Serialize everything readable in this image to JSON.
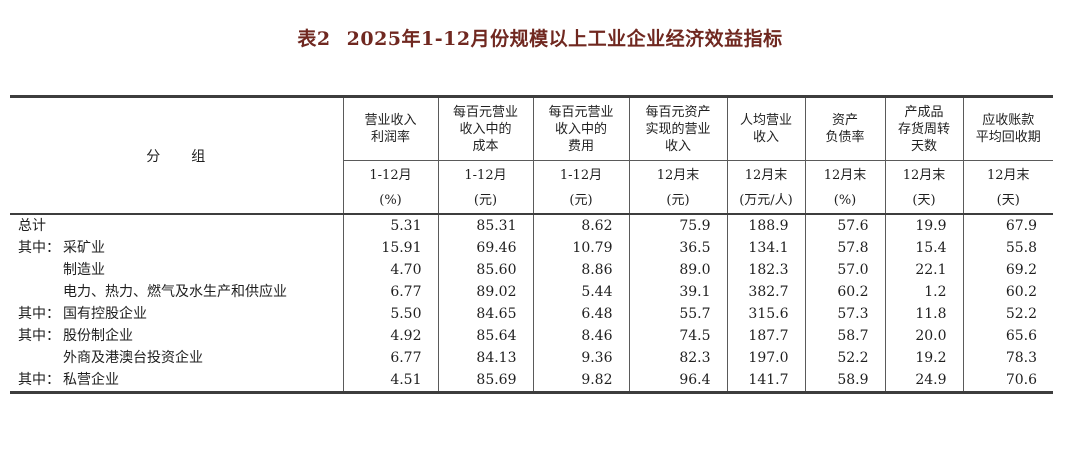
{
  "title": {
    "tag": "表2",
    "text": "2025年1-12月份规模以上工业企业经济效益指标"
  },
  "colors": {
    "title_text": "#702820",
    "heavy_border": "#3d3d3d",
    "light_border": "#5a5a5a",
    "body_text": "#1f1f1f",
    "background": "#ffffff"
  },
  "table": {
    "group_header": "分　　组",
    "columns": [
      {
        "name": "营业收入\n利润率",
        "period": "1-12月",
        "unit": "(%)"
      },
      {
        "name": "每百元营业\n收入中的\n成本",
        "period": "1-12月",
        "unit": "(元)"
      },
      {
        "name": "每百元营业\n收入中的\n费用",
        "period": "1-12月",
        "unit": "(元)"
      },
      {
        "name": "每百元资产\n实现的营业\n收入",
        "period": "12月末",
        "unit": "(元)"
      },
      {
        "name": "人均营业\n收入",
        "period": "12月末",
        "unit": "(万元/人)"
      },
      {
        "name": "资产\n负债率",
        "period": "12月末",
        "unit": "(%)"
      },
      {
        "name": "产成品\n存货周转\n天数",
        "period": "12月末",
        "unit": "(天)"
      },
      {
        "name": "应收账款\n平均回收期",
        "period": "12月末",
        "unit": "(天)"
      }
    ],
    "rows": [
      {
        "prefix": "",
        "name": "总计",
        "indent": false,
        "values": [
          "5.31",
          "85.31",
          "8.62",
          "75.9",
          "188.9",
          "57.6",
          "19.9",
          "67.9"
        ]
      },
      {
        "prefix": "其中：",
        "name": "采矿业",
        "indent": false,
        "values": [
          "15.91",
          "69.46",
          "10.79",
          "36.5",
          "134.1",
          "57.8",
          "15.4",
          "55.8"
        ]
      },
      {
        "prefix": "",
        "name": "制造业",
        "indent": true,
        "values": [
          "4.70",
          "85.60",
          "8.86",
          "89.0",
          "182.3",
          "57.0",
          "22.1",
          "69.2"
        ]
      },
      {
        "prefix": "",
        "name": "电力、热力、燃气及水生产和供应业",
        "indent": true,
        "values": [
          "6.77",
          "89.02",
          "5.44",
          "39.1",
          "382.7",
          "60.2",
          "1.2",
          "60.2"
        ]
      },
      {
        "prefix": "其中：",
        "name": "国有控股企业",
        "indent": false,
        "values": [
          "5.50",
          "84.65",
          "6.48",
          "55.7",
          "315.6",
          "57.3",
          "11.8",
          "52.2"
        ]
      },
      {
        "prefix": "其中：",
        "name": "股份制企业",
        "indent": false,
        "values": [
          "4.92",
          "85.64",
          "8.46",
          "74.5",
          "187.7",
          "58.7",
          "20.0",
          "65.6"
        ]
      },
      {
        "prefix": "",
        "name": "外商及港澳台投资企业",
        "indent": true,
        "values": [
          "6.77",
          "84.13",
          "9.36",
          "82.3",
          "197.0",
          "52.2",
          "19.2",
          "78.3"
        ]
      },
      {
        "prefix": "其中：",
        "name": "私营企业",
        "indent": false,
        "values": [
          "4.51",
          "85.69",
          "9.82",
          "96.4",
          "141.7",
          "58.9",
          "24.9",
          "70.6"
        ]
      }
    ]
  },
  "chart_data": {
    "type": "table",
    "title": "表2　2025年1-12月份规模以上工业企业经济效益指标",
    "row_header": "分组",
    "columns": [
      "营业收入利润率 1-12月 (%)",
      "每百元营业收入中的成本 1-12月 (元)",
      "每百元营业收入中的费用 1-12月 (元)",
      "每百元资产实现的营业收入 12月末 (元)",
      "人均营业收入 12月末 (万元/人)",
      "资产负债率 12月末 (%)",
      "产成品存货周转天数 12月末 (天)",
      "应收账款平均回收期 12月末 (天)"
    ],
    "rows": [
      {
        "group": "总计",
        "values": [
          5.31,
          85.31,
          8.62,
          75.9,
          188.9,
          57.6,
          19.9,
          67.9
        ]
      },
      {
        "group": "其中：采矿业",
        "values": [
          15.91,
          69.46,
          10.79,
          36.5,
          134.1,
          57.8,
          15.4,
          55.8
        ]
      },
      {
        "group": "制造业",
        "values": [
          4.7,
          85.6,
          8.86,
          89.0,
          182.3,
          57.0,
          22.1,
          69.2
        ]
      },
      {
        "group": "电力、热力、燃气及水生产和供应业",
        "values": [
          6.77,
          89.02,
          5.44,
          39.1,
          382.7,
          60.2,
          1.2,
          60.2
        ]
      },
      {
        "group": "其中：国有控股企业",
        "values": [
          5.5,
          84.65,
          6.48,
          55.7,
          315.6,
          57.3,
          11.8,
          52.2
        ]
      },
      {
        "group": "其中：股份制企业",
        "values": [
          4.92,
          85.64,
          8.46,
          74.5,
          187.7,
          58.7,
          20.0,
          65.6
        ]
      },
      {
        "group": "外商及港澳台投资企业",
        "values": [
          6.77,
          84.13,
          9.36,
          82.3,
          197.0,
          52.2,
          19.2,
          78.3
        ]
      },
      {
        "group": "其中：私营企业",
        "values": [
          4.51,
          85.69,
          9.82,
          96.4,
          141.7,
          58.9,
          24.9,
          70.6
        ]
      }
    ]
  }
}
